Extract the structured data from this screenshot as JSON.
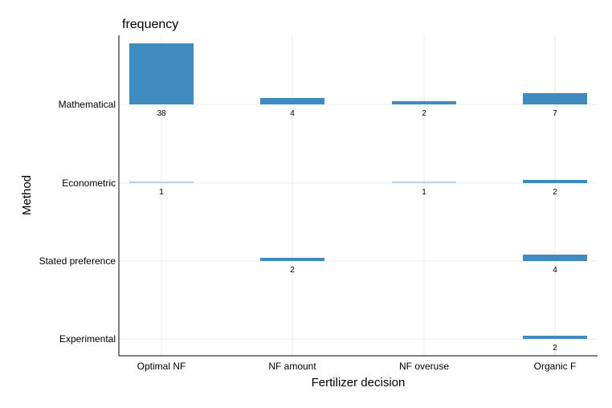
{
  "chart_data": {
    "type": "bar",
    "title": "frequency",
    "xlabel": "Fertilizer decision",
    "ylabel": "Method",
    "categories": [
      "Optimal NF",
      "NF amount",
      "NF overuse",
      "Organic F"
    ],
    "methods": [
      "Mathematical",
      "Econometric",
      "Stated preference",
      "Experimental"
    ],
    "cells": [
      {
        "method": "Mathematical",
        "decision": "Optimal NF",
        "value": 38
      },
      {
        "method": "Mathematical",
        "decision": "NF amount",
        "value": 4
      },
      {
        "method": "Mathematical",
        "decision": "NF overuse",
        "value": 2
      },
      {
        "method": "Mathematical",
        "decision": "Organic F",
        "value": 7
      },
      {
        "method": "Econometric",
        "decision": "Optimal NF",
        "value": 1
      },
      {
        "method": "Econometric",
        "decision": "NF overuse",
        "value": 1
      },
      {
        "method": "Econometric",
        "decision": "Organic F",
        "value": 2
      },
      {
        "method": "Stated preference",
        "decision": "NF amount",
        "value": 2
      },
      {
        "method": "Stated preference",
        "decision": "Organic F",
        "value": 4
      },
      {
        "method": "Experimental",
        "decision": "Organic F",
        "value": 2
      }
    ],
    "grid": true,
    "legend": "none",
    "colors": {
      "dark": "#3d8bbf",
      "light": "#b7d2e8"
    }
  }
}
